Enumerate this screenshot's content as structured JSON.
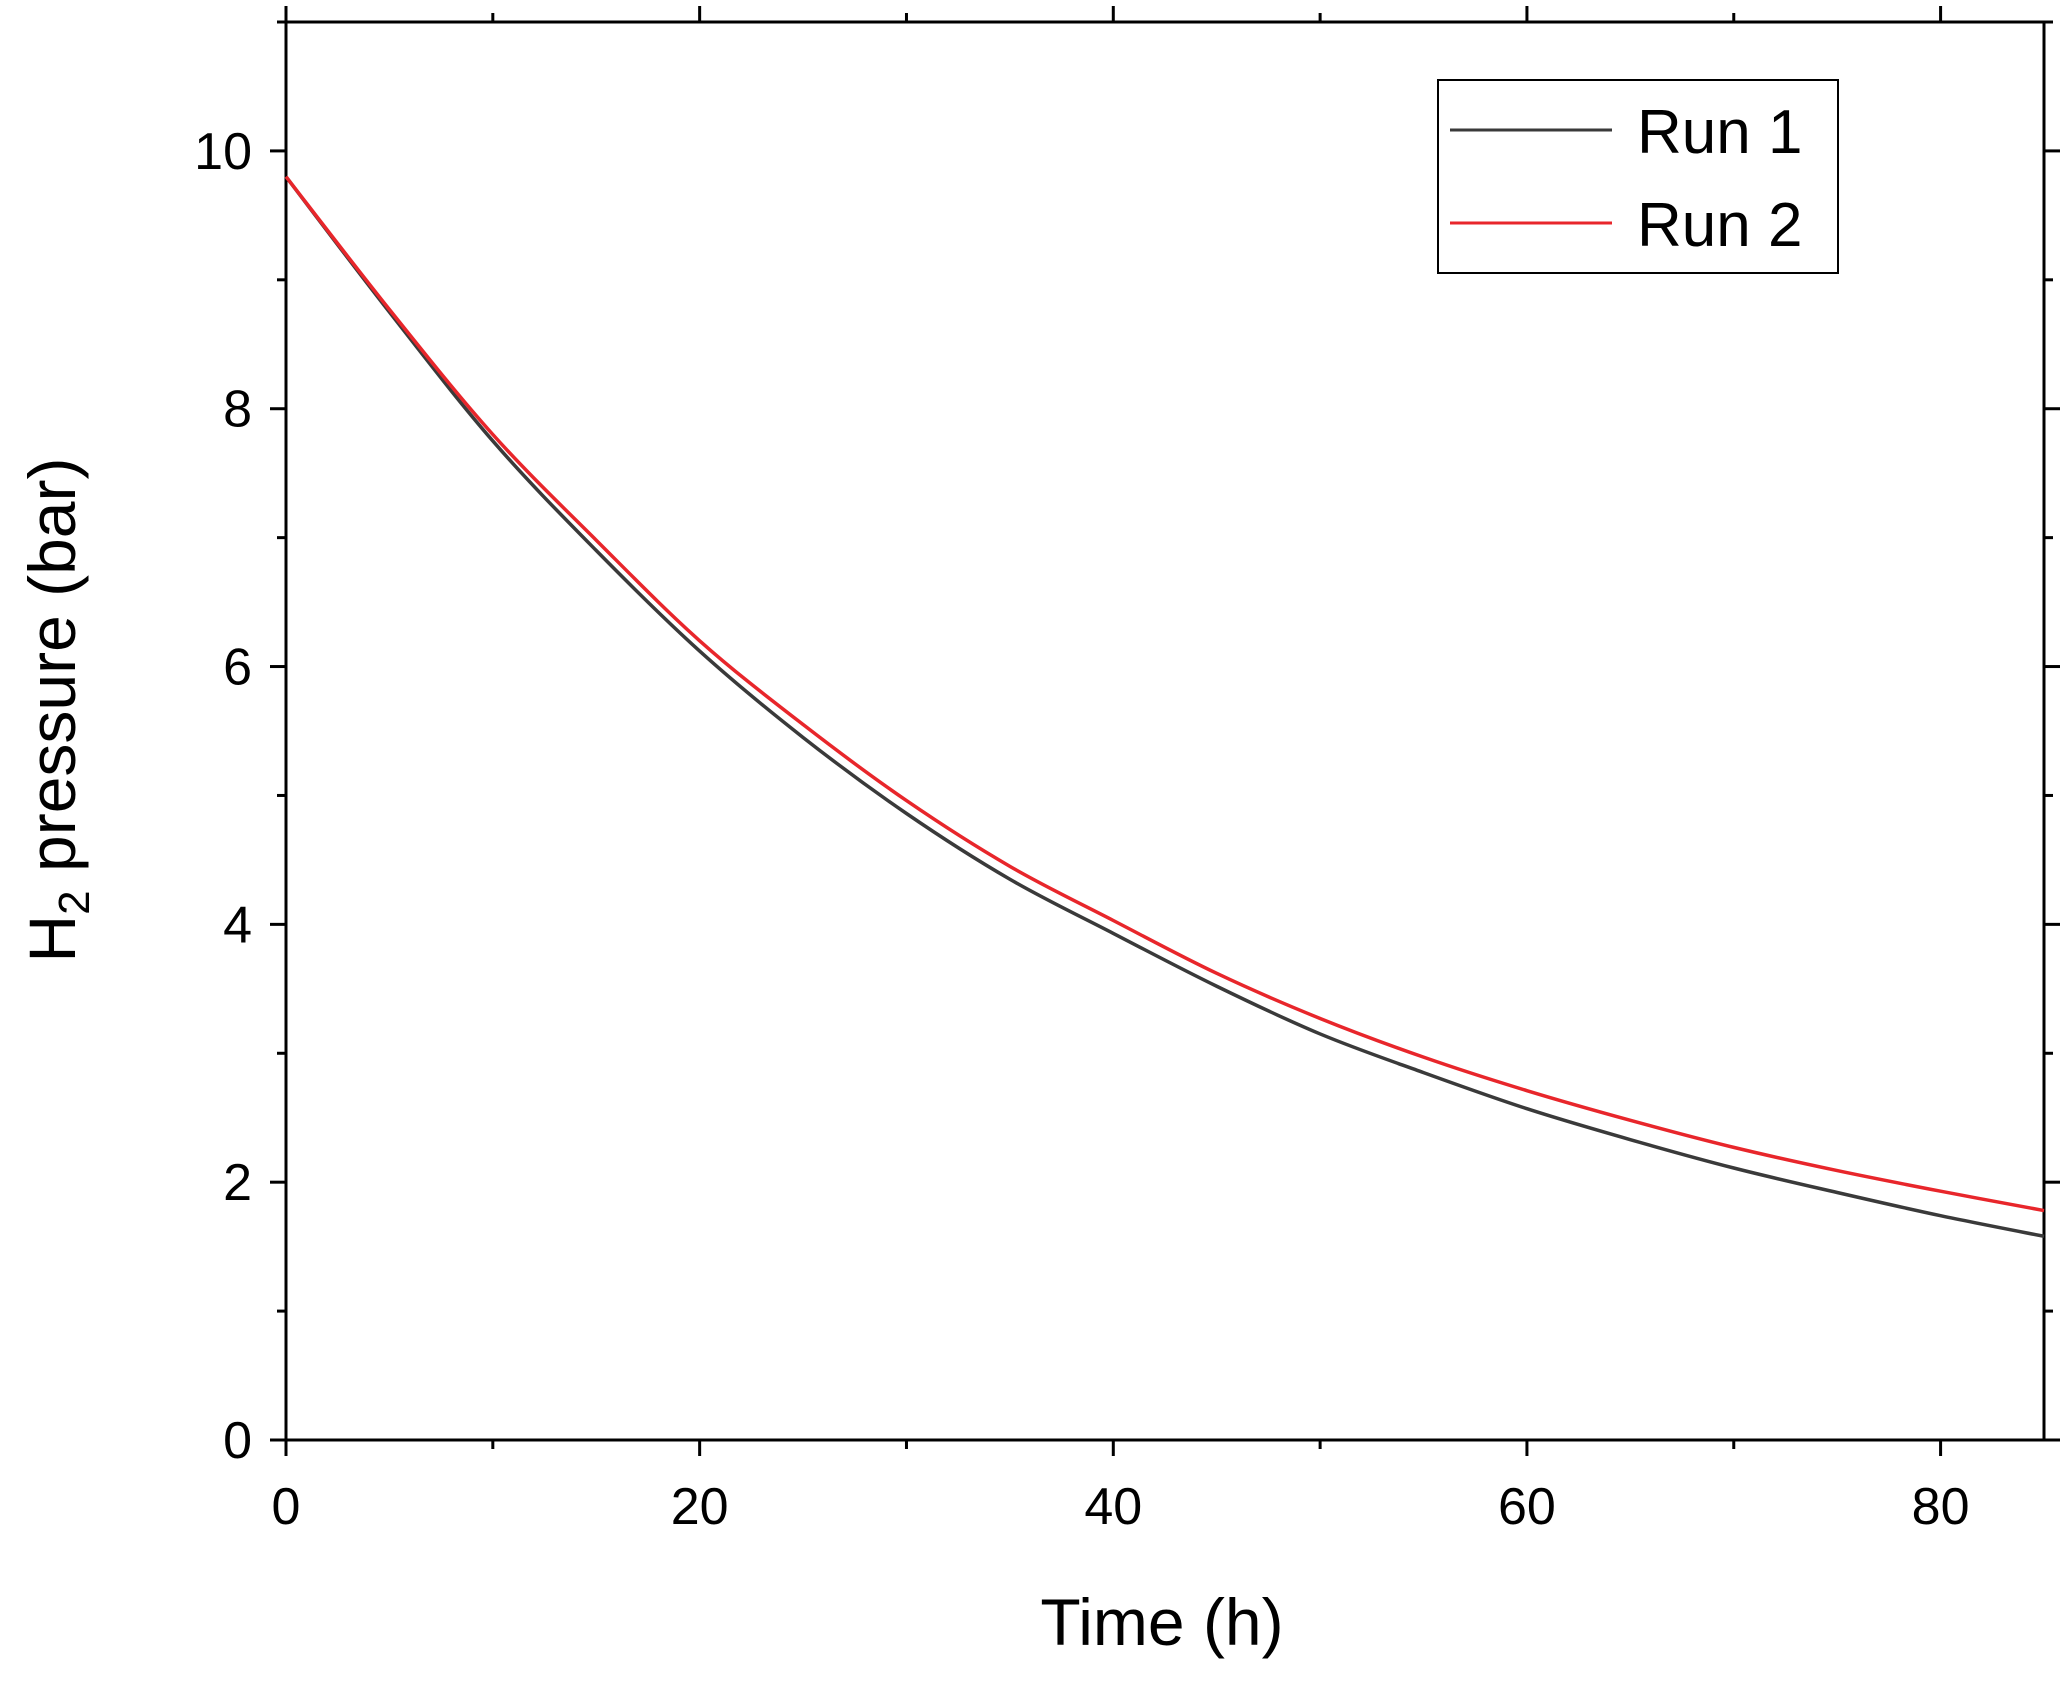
{
  "chart_data": {
    "type": "line",
    "xlabel": "Time (h)",
    "ylabel_main": "H",
    "ylabel_sub": "2",
    "ylabel_rest": " pressure (bar)",
    "xlim": [
      0,
      85
    ],
    "ylim": [
      0,
      11
    ],
    "x_ticks": [
      0,
      20,
      40,
      60,
      80
    ],
    "y_ticks": [
      0,
      2,
      4,
      6,
      8,
      10
    ],
    "x_minor_step": 10,
    "y_minor_step": 1,
    "grid": false,
    "legend_position": "top-right",
    "x": [
      0,
      5,
      10,
      15,
      20,
      25,
      30,
      35,
      40,
      45,
      50,
      55,
      60,
      65,
      70,
      75,
      80,
      85
    ],
    "series": [
      {
        "name": "Run 1",
        "color": "#3a3a3a",
        "values": [
          9.8,
          8.75,
          7.75,
          6.9,
          6.12,
          5.45,
          4.86,
          4.35,
          3.93,
          3.52,
          3.15,
          2.85,
          2.57,
          2.33,
          2.11,
          1.92,
          1.74,
          1.58
        ]
      },
      {
        "name": "Run 2",
        "color": "#e8262b",
        "values": [
          9.8,
          8.77,
          7.8,
          6.98,
          6.2,
          5.55,
          4.96,
          4.45,
          4.03,
          3.62,
          3.27,
          2.97,
          2.71,
          2.48,
          2.27,
          2.09,
          1.93,
          1.78
        ]
      }
    ]
  }
}
